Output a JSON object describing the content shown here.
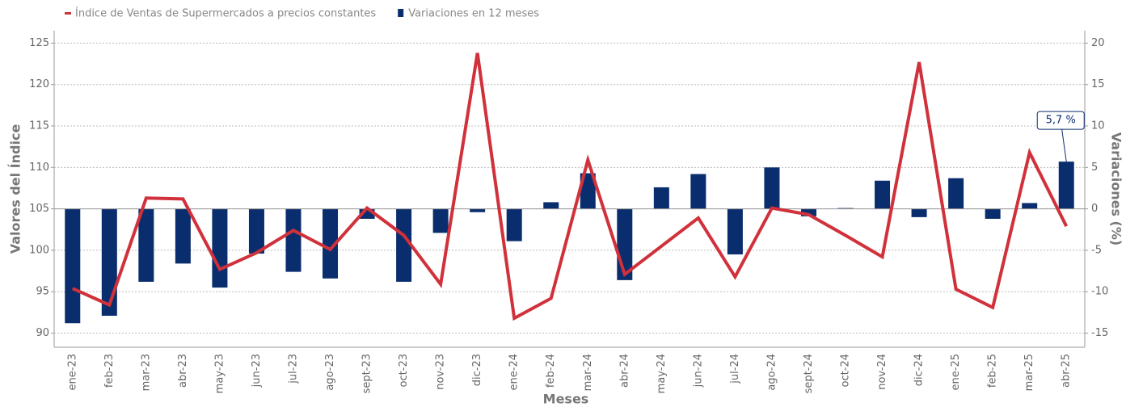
{
  "chart_data": {
    "type": "bar_line",
    "x_label": "Meses",
    "y_label": "Valores del Índice",
    "y2_label": "Variaciones (%)",
    "categories": [
      "ene-23",
      "feb-23",
      "mar-23",
      "abr-23",
      "may-23",
      "jun-23",
      "jul-23",
      "ago-23",
      "sept-23",
      "oct-23",
      "nov-23",
      "dic-23",
      "ene-24",
      "feb-24",
      "mar-24",
      "abr-24",
      "may-24",
      "jun-24",
      "jul-24",
      "ago-24",
      "sept-24",
      "oct-24",
      "nov-24",
      "dic-24",
      "ene-25",
      "feb-25",
      "mar-25",
      "abr-25"
    ],
    "series": [
      {
        "name": "Índice de Ventas de Supermercados a precios constantes",
        "type": "line",
        "color": "#d0313a",
        "axis": "y",
        "values": [
          95.4,
          93.4,
          106.3,
          106.2,
          97.7,
          99.7,
          102.4,
          100.1,
          105.1,
          101.8,
          95.9,
          123.8,
          91.8,
          94.2,
          110.9,
          97.1,
          100.5,
          103.9,
          96.8,
          105.1,
          104.3,
          101.8,
          99.2,
          122.7,
          95.3,
          93.1,
          111.8,
          102.9
        ]
      },
      {
        "name": "Variaciones en 12 meses",
        "type": "bar",
        "color": "#0a2d6e",
        "axis": "y2",
        "values": [
          -13.8,
          -12.9,
          -8.8,
          -6.6,
          -9.5,
          -5.4,
          -7.6,
          -8.4,
          -1.2,
          -8.8,
          -2.9,
          -0.4,
          -3.9,
          0.8,
          4.3,
          -8.6,
          2.6,
          4.2,
          -5.5,
          5.0,
          -0.9,
          0.1,
          3.4,
          -1.0,
          3.7,
          -1.2,
          0.7,
          5.7
        ],
        "value_labels": [
          null,
          null,
          null,
          null,
          null,
          null,
          null,
          null,
          null,
          null,
          null,
          null,
          null,
          null,
          null,
          null,
          null,
          null,
          null,
          null,
          null,
          null,
          null,
          null,
          null,
          null,
          null,
          "5,7 %"
        ]
      }
    ],
    "ylim": [
      88.3,
      126.5
    ],
    "yticks": [
      90,
      95,
      100,
      105,
      110,
      115,
      120,
      125
    ],
    "y2lim": [
      -16.7,
      21.5
    ],
    "y2ticks": [
      -15,
      -10,
      -5,
      0,
      5,
      10,
      15,
      20
    ],
    "grid": true,
    "legend": "top-left"
  }
}
